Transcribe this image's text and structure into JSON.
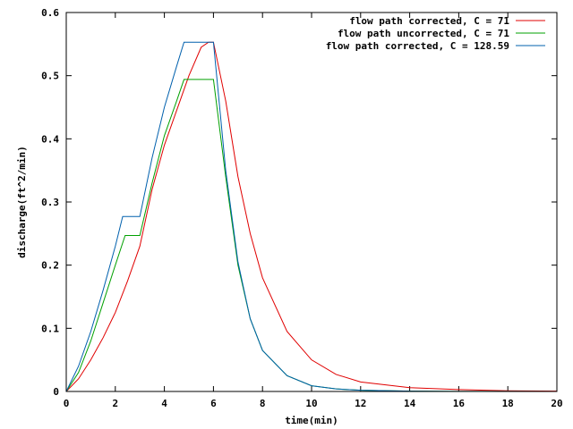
{
  "chart_data": {
    "type": "line",
    "title": "",
    "xlabel": "time(min)",
    "ylabel": "discharge(ft^2/min)",
    "xlim": [
      0,
      20
    ],
    "ylim": [
      0,
      0.6
    ],
    "xticks": [
      0,
      2,
      4,
      6,
      8,
      10,
      12,
      14,
      16,
      18,
      20
    ],
    "yticks": [
      0,
      0.1,
      0.2,
      0.3,
      0.4,
      0.5,
      0.6
    ],
    "xtick_labels": [
      "0",
      "2",
      "4",
      "6",
      "8",
      "10",
      "12",
      "14",
      "16",
      "18",
      "20"
    ],
    "ytick_labels": [
      "0",
      "0.1",
      "0.2",
      "0.3",
      "0.4",
      "0.5",
      "0.6"
    ],
    "grid": false,
    "legend_position": "top-right",
    "series": [
      {
        "name": "flow path corrected, C = 71",
        "color": "#e00000",
        "x": [
          0,
          0.5,
          1,
          1.5,
          2,
          2.5,
          3,
          3.5,
          4,
          4.5,
          5,
          5.5,
          5.8,
          6,
          6.5,
          7,
          7.5,
          8,
          9,
          10,
          11,
          12,
          14,
          16,
          18,
          20
        ],
        "y": [
          0,
          0.02,
          0.05,
          0.085,
          0.125,
          0.175,
          0.23,
          0.32,
          0.39,
          0.445,
          0.5,
          0.545,
          0.553,
          0.553,
          0.46,
          0.34,
          0.25,
          0.18,
          0.095,
          0.05,
          0.027,
          0.015,
          0.006,
          0.003,
          0.001,
          0.0005
        ]
      },
      {
        "name": "flow path uncorrected, C = 71",
        "color": "#00a000",
        "x": [
          0,
          0.5,
          1,
          1.5,
          2,
          2.4,
          3,
          3.5,
          4,
          4.5,
          4.8,
          6,
          6.5,
          7,
          7.5,
          8,
          9,
          10,
          11,
          12,
          14,
          16,
          17.5,
          20
        ],
        "y": [
          0,
          0.03,
          0.08,
          0.14,
          0.2,
          0.247,
          0.247,
          0.33,
          0.405,
          0.46,
          0.494,
          0.494,
          0.34,
          0.2,
          0.115,
          0.065,
          0.025,
          0.009,
          0.004,
          0.002,
          0.0005,
          0.0002,
          0.0001,
          0
        ]
      },
      {
        "name": "flow path corrected, C = 128.59",
        "color": "#0060ad",
        "x": [
          0,
          0.5,
          1,
          1.5,
          2,
          2.3,
          3,
          3.5,
          4,
          4.5,
          4.8,
          6,
          6.5,
          7,
          7.5,
          8,
          9,
          10,
          11,
          12,
          14,
          16,
          17.5,
          20
        ],
        "y": [
          0,
          0.04,
          0.095,
          0.16,
          0.23,
          0.277,
          0.277,
          0.37,
          0.45,
          0.515,
          0.553,
          0.553,
          0.35,
          0.205,
          0.115,
          0.065,
          0.025,
          0.009,
          0.004,
          0.002,
          0.0005,
          0.0002,
          0.0001,
          0
        ]
      }
    ]
  }
}
